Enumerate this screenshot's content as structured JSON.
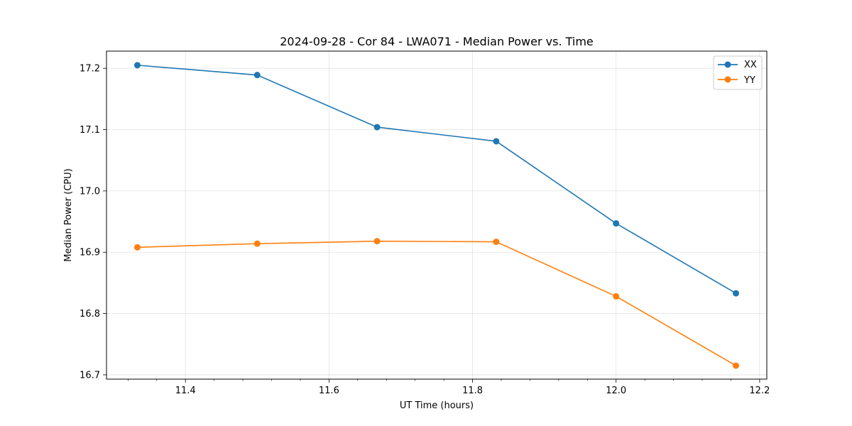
{
  "chart_data": {
    "type": "line",
    "title": "2024-09-28 - Cor 84 - LWA071 - Median Power vs. Time",
    "xlabel": "UT Time (hours)",
    "ylabel": "Median Power (CPU)",
    "xlim": [
      11.29,
      12.21
    ],
    "ylim": [
      16.693,
      17.228
    ],
    "xticks": [
      11.4,
      11.6,
      11.8,
      12.0,
      12.2
    ],
    "xtick_labels": [
      "11.4",
      "11.6",
      "11.8",
      "12.0",
      "12.2"
    ],
    "yticks": [
      16.7,
      16.8,
      16.9,
      17.0,
      17.1,
      17.2
    ],
    "ytick_labels": [
      "16.7",
      "16.8",
      "16.9",
      "17.0",
      "17.1",
      "17.2"
    ],
    "grid": true,
    "legend_position": "top-right",
    "x": [
      11.333,
      11.5,
      11.667,
      11.833,
      12.0,
      12.167
    ],
    "series": [
      {
        "name": "XX",
        "color": "#1f77b4",
        "values": [
          17.205,
          17.189,
          17.104,
          17.081,
          16.947,
          16.833
        ]
      },
      {
        "name": "YY",
        "color": "#ff7f0e",
        "values": [
          16.908,
          16.914,
          16.918,
          16.917,
          16.828,
          16.715
        ]
      }
    ]
  }
}
